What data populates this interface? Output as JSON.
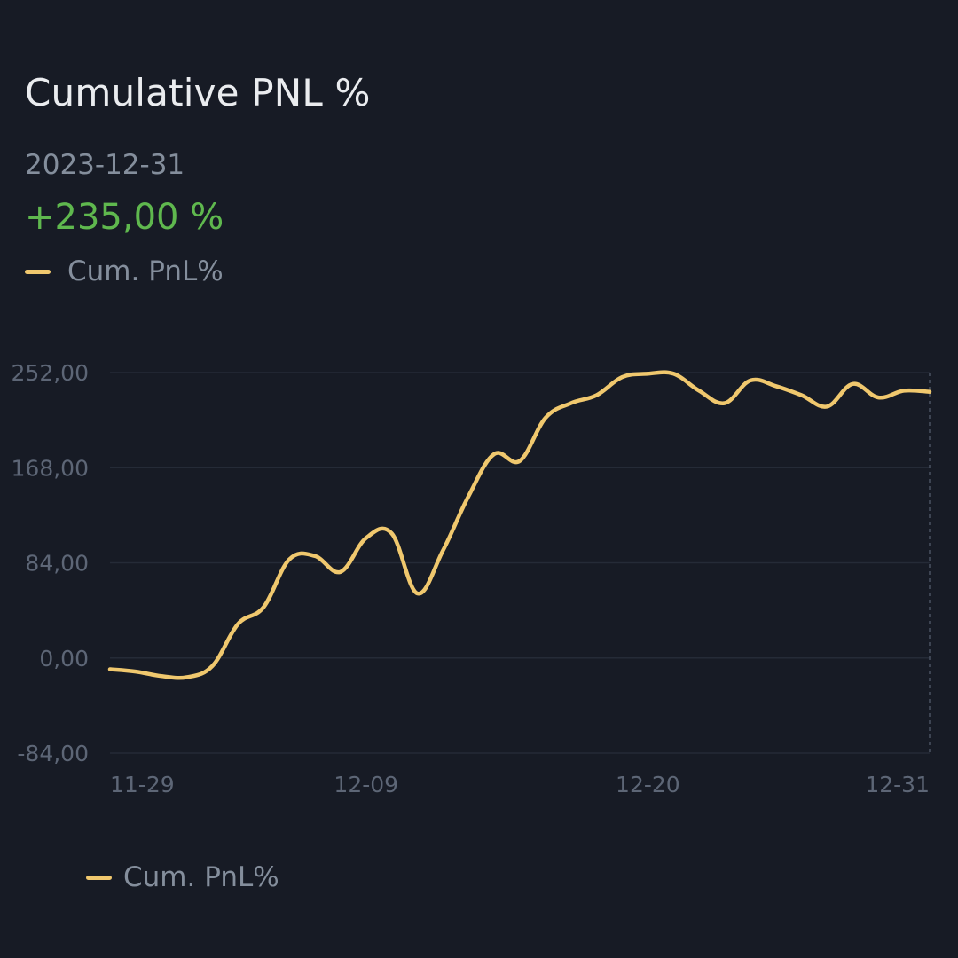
{
  "header": {
    "title": "Cumulative PNL %",
    "date": "2023-12-31",
    "value": "+235,00 %"
  },
  "legend": {
    "label": "Cum. PnL%",
    "color": "#f0c86e"
  },
  "colors": {
    "background": "#171b25",
    "line": "#f0c86e",
    "positive": "#5fb84e",
    "grid": "#252b37",
    "tick_text": "#5d6676"
  },
  "chart_data": {
    "type": "line",
    "title": "Cumulative PNL %",
    "xlabel": "",
    "ylabel": "",
    "x_ticks": [
      "11-29",
      "12-09",
      "12-20",
      "12-31"
    ],
    "y_ticks": [
      "252,00",
      "168,00",
      "84,00",
      "0,00",
      "-84,00"
    ],
    "y_tick_values": [
      252,
      168,
      84,
      0,
      -84
    ],
    "ylim": [
      -84,
      252
    ],
    "xlim": [
      "2023-11-29",
      "2023-12-31"
    ],
    "grid": true,
    "legend_position": "top-left",
    "series": [
      {
        "name": "Cum. PnL%",
        "color": "#f0c86e",
        "x": [
          "2023-11-29",
          "2023-11-30",
          "2023-12-01",
          "2023-12-02",
          "2023-12-03",
          "2023-12-04",
          "2023-12-05",
          "2023-12-06",
          "2023-12-07",
          "2023-12-08",
          "2023-12-09",
          "2023-12-10",
          "2023-12-11",
          "2023-12-12",
          "2023-12-13",
          "2023-12-14",
          "2023-12-15",
          "2023-12-16",
          "2023-12-17",
          "2023-12-18",
          "2023-12-19",
          "2023-12-20",
          "2023-12-21",
          "2023-12-22",
          "2023-12-23",
          "2023-12-24",
          "2023-12-25",
          "2023-12-26",
          "2023-12-27",
          "2023-12-28",
          "2023-12-29",
          "2023-12-30",
          "2023-12-31"
        ],
        "values": [
          -10,
          -12,
          -16,
          -17,
          -7,
          30,
          45,
          87,
          90,
          76,
          106,
          110,
          57,
          95,
          143,
          180,
          174,
          212,
          225,
          232,
          248,
          251,
          251,
          236,
          225,
          245,
          240,
          232,
          222,
          242,
          230,
          236,
          235
        ]
      }
    ]
  }
}
